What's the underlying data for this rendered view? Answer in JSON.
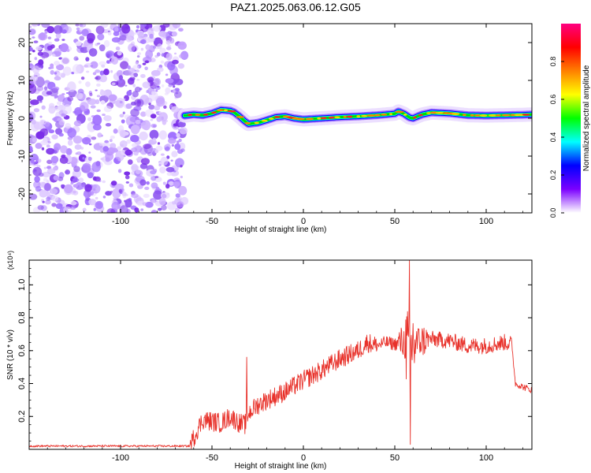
{
  "title": "PAZ1.2025.063.06.12.G05",
  "chart_data": [
    {
      "type": "heatmap",
      "title": "PAZ1.2025.063.06.12.G05",
      "xlabel": "Height of straight line (km)",
      "ylabel": "Frequency (Hz)",
      "xlim": [
        -150,
        125
      ],
      "ylim": [
        -25,
        25
      ],
      "x_ticks": [
        "-100",
        "-50",
        "0",
        "50",
        "100"
      ],
      "y_ticks": [
        "-20",
        "-10",
        "0",
        "10",
        "20"
      ],
      "x_tick_values": [
        -100,
        -50,
        0,
        50,
        100
      ],
      "y_tick_values": [
        -20,
        -10,
        0,
        10,
        20
      ],
      "noise_region_x": [
        -150,
        -65
      ],
      "ridge": {
        "x": [
          -65,
          -60,
          -55,
          -50,
          -45,
          -40,
          -38,
          -35,
          -32,
          -30,
          -25,
          -20,
          -15,
          -10,
          -5,
          0,
          10,
          20,
          30,
          40,
          45,
          50,
          52,
          55,
          58,
          60,
          65,
          70,
          80,
          90,
          100,
          110,
          120,
          125
        ],
        "y": [
          0.7,
          1.0,
          0.8,
          1.3,
          2.2,
          2.0,
          1.6,
          0.5,
          -0.8,
          -1.5,
          -1.2,
          -0.5,
          0.3,
          0.5,
          0.0,
          -0.3,
          0.0,
          0.3,
          0.5,
          0.8,
          1.0,
          1.2,
          1.8,
          1.2,
          0.2,
          0.0,
          1.0,
          1.5,
          1.3,
          0.8,
          0.7,
          0.8,
          0.9,
          1.0
        ]
      },
      "colorbar": {
        "label": "Normalized spectral amplitude",
        "ticks": [
          "0.0",
          "0.2",
          "0.4",
          "0.6",
          "0.8"
        ],
        "tick_values": [
          0.0,
          0.2,
          0.4,
          0.6,
          0.8
        ],
        "range": [
          0,
          1
        ],
        "colors": [
          "#ffffff",
          "#7b00ff",
          "#0000ff",
          "#00ffff",
          "#00ff00",
          "#ffff00",
          "#ff8000",
          "#ff0000",
          "#ff0080"
        ]
      }
    },
    {
      "type": "line",
      "xlabel": "Height of straight line (km)",
      "ylabel": "SNR (10 * v/v)",
      "scale_label": "(x10⁴)",
      "xlim": [
        -150,
        125
      ],
      "ylim": [
        0,
        1.15
      ],
      "x_ticks": [
        "-100",
        "-50",
        "0",
        "50",
        "100"
      ],
      "y_ticks": [
        "0.2",
        "0.4",
        "0.6",
        "0.8",
        "1.0"
      ],
      "x_tick_values": [
        -100,
        -50,
        0,
        50,
        100
      ],
      "y_tick_values": [
        0.2,
        0.4,
        0.6,
        0.8,
        1.0
      ],
      "color": "#e8322b",
      "trend": {
        "x": [
          -150,
          -100,
          -62,
          -58,
          -55,
          -50,
          -45,
          -40,
          -35,
          -32,
          -30,
          -25,
          -20,
          -10,
          0,
          10,
          20,
          30,
          35,
          40,
          45,
          50,
          55,
          58,
          60,
          65,
          70,
          80,
          90,
          100,
          110,
          114,
          116,
          120,
          125
        ],
        "y": [
          0.02,
          0.02,
          0.02,
          0.12,
          0.18,
          0.17,
          0.16,
          0.2,
          0.16,
          0.15,
          0.22,
          0.27,
          0.3,
          0.35,
          0.42,
          0.48,
          0.55,
          0.6,
          0.65,
          0.63,
          0.65,
          0.64,
          0.65,
          0.6,
          0.65,
          0.66,
          0.67,
          0.66,
          0.63,
          0.63,
          0.65,
          0.64,
          0.4,
          0.38,
          0.36
        ]
      },
      "spikes": [
        {
          "x": -31,
          "y": 0.56
        },
        {
          "x": 58,
          "y": 1.15
        },
        {
          "x": 58.5,
          "y": 0.03
        }
      ]
    }
  ]
}
